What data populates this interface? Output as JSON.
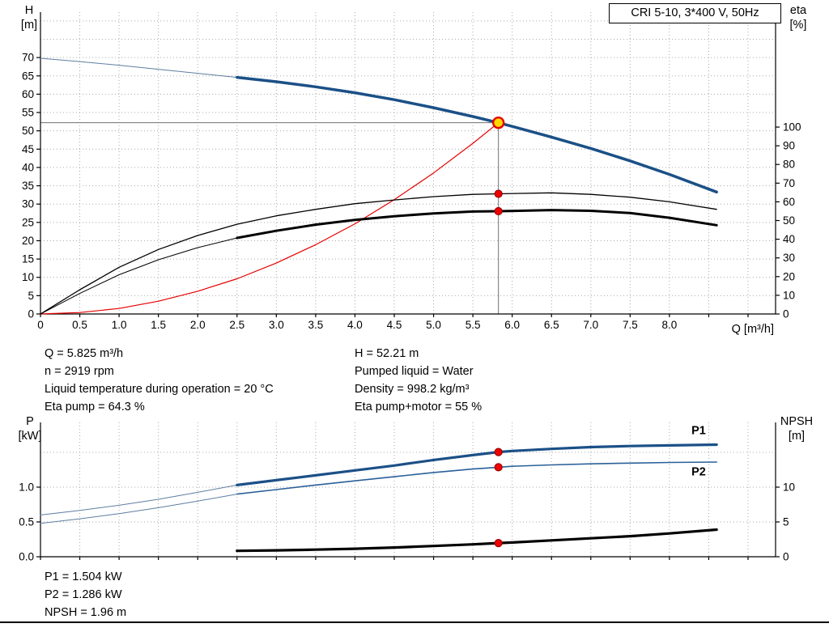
{
  "info_top_left": [
    "Q = 5.825 m³/h",
    "n = 2919 rpm",
    "Liquid temperature during operation = 20 °C",
    "Eta pump = 64.3 %"
  ],
  "info_top_right": [
    "H = 52.21 m",
    "Pumped liquid = Water",
    "Density = 998.2 kg/m³",
    "Eta pump+motor = 55 %"
  ],
  "info_bottom": [
    "P1 = 1.504 kW",
    "P2 = 1.286 kW",
    "NPSH = 1.96 m"
  ],
  "chart_data": [
    {
      "id": "qh-chart",
      "type": "line",
      "title": "CRI 5-10, 3*400 V, 50Hz",
      "x_axis": {
        "label": "Q [m³/h]",
        "min": 0,
        "max": 9.35,
        "tick_values": [
          0,
          0.5,
          1,
          1.5,
          2,
          2.5,
          3,
          3.5,
          4,
          4.5,
          5,
          5.5,
          6,
          6.5,
          7,
          7.5,
          8,
          8.5,
          9
        ],
        "tick_labels": [
          "0",
          "0.5",
          "1.0",
          "1.5",
          "2.0",
          "2.5",
          "3.0",
          "3.5",
          "4.0",
          "4.5",
          "5.0",
          "5.5",
          "6.0",
          "6.5",
          "7.0",
          "7.5",
          "8.0",
          "",
          ""
        ],
        "grid_values": [
          0.5,
          1,
          1.5,
          2,
          2.5,
          3,
          3.5,
          4,
          4.5,
          5,
          5.5,
          6,
          6.5,
          7,
          7.5,
          8,
          8.5,
          9
        ]
      },
      "left_axis": {
        "name": "H",
        "unit": "[m]",
        "min": 0,
        "max": 82.4,
        "tick_values": [
          0,
          5,
          10,
          15,
          20,
          25,
          30,
          35,
          40,
          45,
          50,
          55,
          60,
          65,
          70
        ],
        "tick_labels": [
          "0",
          "5",
          "10",
          "15",
          "20",
          "25",
          "30",
          "35",
          "40",
          "45",
          "50",
          "55",
          "60",
          "65",
          "70"
        ],
        "grid_values": [
          5,
          10,
          15,
          20,
          25,
          30,
          35,
          40,
          45,
          50,
          55,
          60,
          65,
          70,
          75,
          80
        ]
      },
      "right_axis": {
        "name": "eta",
        "unit": "[%]",
        "min": 0,
        "max": 161.5,
        "tick_values": [
          0,
          10,
          20,
          30,
          40,
          50,
          60,
          70,
          80,
          90,
          100
        ],
        "tick_labels": [
          "0",
          "10",
          "20",
          "30",
          "40",
          "50",
          "60",
          "70",
          "80",
          "90",
          "100"
        ]
      },
      "series": [
        {
          "name": "qh-curve-extension",
          "axis": "left",
          "color": "#5f7da0",
          "width": 1,
          "points": [
            [
              0,
              69.8
            ],
            [
              0.5,
              68.9
            ],
            [
              1,
              67.9
            ],
            [
              1.5,
              66.8
            ],
            [
              2,
              65.7
            ],
            [
              2.5,
              64.6
            ]
          ]
        },
        {
          "name": "system-curve",
          "axis": "left",
          "color": "#e60000",
          "width": 1.2,
          "points": [
            [
              0,
              0
            ],
            [
              0.5,
              0.4
            ],
            [
              1,
              1.5
            ],
            [
              1.5,
              3.5
            ],
            [
              2,
              6.2
            ],
            [
              2.5,
              9.6
            ],
            [
              3,
              13.9
            ],
            [
              3.5,
              18.9
            ],
            [
              4,
              24.6
            ],
            [
              4.5,
              31.2
            ],
            [
              5,
              38.5
            ],
            [
              5.5,
              46.6
            ],
            [
              5.825,
              52.21
            ]
          ]
        },
        {
          "name": "eta-pump-curve",
          "axis": "right",
          "color": "#000000",
          "width": 1.3,
          "points": [
            [
              0,
              0
            ],
            [
              0.5,
              13
            ],
            [
              1,
              25
            ],
            [
              1.5,
              34.5
            ],
            [
              2,
              42
            ],
            [
              2.5,
              48
            ],
            [
              3,
              52.5
            ],
            [
              3.5,
              56
            ],
            [
              4,
              59
            ],
            [
              4.5,
              61
            ],
            [
              5,
              62.8
            ],
            [
              5.5,
              64
            ],
            [
              5.825,
              64.3
            ],
            [
              6.5,
              64.8
            ],
            [
              7,
              64
            ],
            [
              7.5,
              62.5
            ],
            [
              8,
              60
            ],
            [
              8.6,
              56
            ]
          ]
        },
        {
          "name": "eta-pump-motor-extension",
          "axis": "right",
          "color": "#000000",
          "width": 1,
          "points": [
            [
              0,
              0
            ],
            [
              0.5,
              11
            ],
            [
              1,
              21
            ],
            [
              1.5,
              29
            ],
            [
              2,
              35.5
            ],
            [
              2.5,
              40.7
            ]
          ]
        },
        {
          "name": "eta-pump-motor-curve",
          "axis": "right",
          "color": "#000000",
          "width": 3,
          "points": [
            [
              2.5,
              40.7
            ],
            [
              3,
              44.5
            ],
            [
              3.5,
              47.8
            ],
            [
              4,
              50.3
            ],
            [
              4.5,
              52.3
            ],
            [
              5,
              53.8
            ],
            [
              5.5,
              54.8
            ],
            [
              5.825,
              55
            ],
            [
              6.5,
              55.6
            ],
            [
              7,
              55.2
            ],
            [
              7.5,
              54
            ],
            [
              8,
              51.5
            ],
            [
              8.6,
              47.5
            ]
          ]
        },
        {
          "name": "qh-curve",
          "axis": "left",
          "color": "#1b5087",
          "width": 3.5,
          "points": [
            [
              2.5,
              64.6
            ],
            [
              3,
              63.4
            ],
            [
              3.5,
              62
            ],
            [
              4,
              60.4
            ],
            [
              4.5,
              58.5
            ],
            [
              5,
              56.3
            ],
            [
              5.5,
              53.9
            ],
            [
              5.825,
              52.21
            ],
            [
              6,
              51.2
            ],
            [
              6.5,
              48.3
            ],
            [
              7,
              45.2
            ],
            [
              7.5,
              41.8
            ],
            [
              8,
              38.1
            ],
            [
              8.6,
              33.3
            ]
          ]
        }
      ],
      "crosshair": {
        "q": 5.825,
        "h": 52.21
      },
      "markers": [
        {
          "name": "eta-pump-duty-dot",
          "type": "dot",
          "axis": "right",
          "q": 5.825,
          "v": 64.3,
          "fill": "#f00000",
          "stroke": "#a00000"
        },
        {
          "name": "eta-pump-motor-duty-dot",
          "type": "dot",
          "axis": "right",
          "q": 5.825,
          "v": 55,
          "fill": "#f00000",
          "stroke": "#a00000"
        },
        {
          "name": "duty-point-marker",
          "type": "op",
          "axis": "left",
          "q": 5.825,
          "v": 52.21,
          "fill": "#ffd800",
          "stroke": "#e60000"
        }
      ]
    },
    {
      "id": "power-chart",
      "type": "line",
      "title": "",
      "x_axis": {
        "label": "",
        "min": 0,
        "max": 9.35,
        "tick_values": [
          0,
          0.5,
          1,
          1.5,
          2,
          2.5,
          3,
          3.5,
          4,
          4.5,
          5,
          5.5,
          6,
          6.5,
          7,
          7.5,
          8,
          8.5,
          9
        ],
        "tick_labels": [
          "",
          "",
          "",
          "",
          "",
          "",
          "",
          "",
          "",
          "",
          "",
          "",
          "",
          "",
          "",
          "",
          "",
          "",
          ""
        ],
        "grid_values": [
          0.5,
          1,
          1.5,
          2,
          2.5,
          3,
          3.5,
          4,
          4.5,
          5,
          5.5,
          6,
          6.5,
          7,
          7.5,
          8,
          8.5,
          9
        ]
      },
      "left_axis": {
        "name": "P",
        "unit": "[kW]",
        "min": 0,
        "max": 1.93,
        "tick_values": [
          0,
          0.5,
          1
        ],
        "tick_labels": [
          "0.0",
          "0.5",
          "1.0"
        ],
        "grid_values": [
          0.5,
          1,
          1.5
        ]
      },
      "right_axis": {
        "name": "NPSH",
        "unit": "[m]",
        "min": 0,
        "max": 19.3,
        "tick_values": [
          0,
          5,
          10
        ],
        "tick_labels": [
          "0",
          "5",
          "10"
        ]
      },
      "series": [
        {
          "name": "p1-curve-extension",
          "axis": "left",
          "color": "#5f7da0",
          "width": 1,
          "points": [
            [
              0,
              0.6
            ],
            [
              0.5,
              0.665
            ],
            [
              1,
              0.74
            ],
            [
              1.5,
              0.825
            ],
            [
              2,
              0.925
            ],
            [
              2.5,
              1.03
            ]
          ]
        },
        {
          "name": "p2-curve-extension",
          "axis": "left",
          "color": "#5f7da0",
          "width": 1,
          "points": [
            [
              0,
              0.48
            ],
            [
              0.5,
              0.545
            ],
            [
              1,
              0.62
            ],
            [
              1.5,
              0.705
            ],
            [
              2,
              0.8
            ],
            [
              2.5,
              0.9
            ]
          ]
        },
        {
          "name": "p2-curve",
          "axis": "left",
          "color": "#2a6099",
          "width": 1.6,
          "points": [
            [
              2.5,
              0.9
            ],
            [
              3,
              0.965
            ],
            [
              3.5,
              1.03
            ],
            [
              4,
              1.09
            ],
            [
              4.5,
              1.15
            ],
            [
              5,
              1.21
            ],
            [
              5.5,
              1.26
            ],
            [
              5.825,
              1.286
            ],
            [
              6,
              1.3
            ],
            [
              6.5,
              1.32
            ],
            [
              7,
              1.335
            ],
            [
              7.5,
              1.345
            ],
            [
              8,
              1.355
            ],
            [
              8.6,
              1.36
            ]
          ]
        },
        {
          "name": "p1-curve",
          "axis": "left",
          "color": "#1b5087",
          "width": 3.2,
          "points": [
            [
              2.5,
              1.03
            ],
            [
              3,
              1.1
            ],
            [
              3.5,
              1.17
            ],
            [
              4,
              1.24
            ],
            [
              4.5,
              1.31
            ],
            [
              5,
              1.39
            ],
            [
              5.5,
              1.46
            ],
            [
              5.825,
              1.504
            ],
            [
              6,
              1.52
            ],
            [
              6.5,
              1.55
            ],
            [
              7,
              1.575
            ],
            [
              7.5,
              1.59
            ],
            [
              8,
              1.6
            ],
            [
              8.6,
              1.61
            ]
          ]
        },
        {
          "name": "npsh-curve",
          "axis": "right",
          "color": "#000000",
          "width": 3.2,
          "points": [
            [
              2.5,
              0.85
            ],
            [
              3,
              0.92
            ],
            [
              3.5,
              1.02
            ],
            [
              4,
              1.15
            ],
            [
              4.5,
              1.32
            ],
            [
              5,
              1.55
            ],
            [
              5.5,
              1.78
            ],
            [
              5.825,
              1.96
            ],
            [
              6,
              2.05
            ],
            [
              6.5,
              2.35
            ],
            [
              7,
              2.65
            ],
            [
              7.5,
              2.95
            ],
            [
              8,
              3.35
            ],
            [
              8.6,
              3.9
            ]
          ]
        }
      ],
      "markers": [
        {
          "name": "p1-duty-dot",
          "type": "dot",
          "axis": "left",
          "q": 5.825,
          "v": 1.504,
          "fill": "#f00000",
          "stroke": "#a00000"
        },
        {
          "name": "p2-duty-dot",
          "type": "dot",
          "axis": "left",
          "q": 5.825,
          "v": 1.286,
          "fill": "#f00000",
          "stroke": "#a00000"
        },
        {
          "name": "npsh-duty-dot",
          "type": "dot",
          "axis": "right",
          "q": 5.825,
          "v": 1.96,
          "fill": "#f00000",
          "stroke": "#a00000"
        }
      ],
      "annotations": [
        {
          "text": "P1",
          "q": 8.28,
          "axis": "left",
          "v": 1.76,
          "color": "#1b5087"
        },
        {
          "text": "P2",
          "q": 8.28,
          "axis": "left",
          "v": 1.17,
          "color": "#1b5087"
        }
      ]
    }
  ]
}
